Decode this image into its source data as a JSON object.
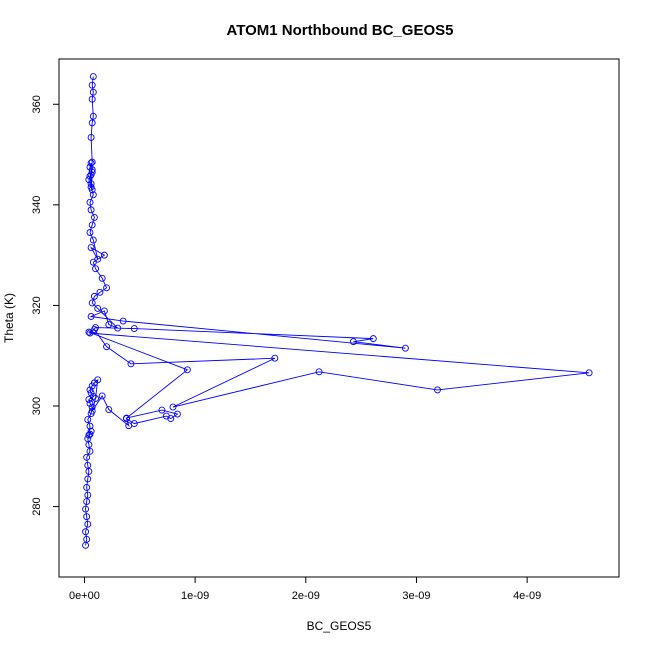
{
  "chart_data": {
    "type": "scatter",
    "title": "ATOM1 Northbound BC_GEOS5",
    "xlabel": "BC_GEOS5",
    "ylabel": "Theta (K)",
    "xlim": [
      -2.3e-10,
      4.83e-09
    ],
    "ylim": [
      266,
      369
    ],
    "x_ticks": [
      0,
      1e-09,
      2e-09,
      3e-09,
      4e-09
    ],
    "x_tick_labels": [
      "0e+00",
      "1e-09",
      "2e-09",
      "3e-09",
      "4e-09"
    ],
    "y_ticks": [
      280,
      300,
      320,
      340,
      360
    ],
    "y_tick_labels": [
      "280",
      "300",
      "320",
      "340",
      "360"
    ],
    "grid": false,
    "legend": "none",
    "point_color": "#0000ff",
    "marker": "open-circle",
    "connected": true,
    "series": [
      {
        "x": [
          1e-11,
          2e-11,
          1e-11,
          3e-11,
          2e-11,
          1e-11,
          2e-11,
          3e-11,
          2e-11,
          3e-11,
          4e-11,
          3e-11,
          2e-11,
          5e-11,
          4e-11,
          3e-11,
          5e-11,
          6e-11,
          4e-11,
          5e-11,
          3e-11,
          6e-11,
          7e-11,
          5e-11,
          4e-11,
          8e-11,
          6e-11,
          5e-11,
          7e-11,
          9e-11,
          1.2e-10,
          1e-10,
          7e-11,
          1.6e-10,
          2.2e-10,
          4e-10,
          3.8e-10,
          4.5e-10,
          7.4e-10,
          7.8e-10,
          8.4e-10,
          7e-10,
          3.8e-10,
          9.3e-10,
          4e-11,
          9e-11,
          2e-10,
          4.2e-10,
          1.72e-09,
          8e-10,
          2.12e-09,
          3.19e-09,
          4.56e-09,
          5e-11,
          1e-10,
          4.5e-10,
          2.61e-09,
          2.43e-09,
          2.9e-09,
          3.5e-10,
          6e-11,
          1.8e-10,
          2.2e-10,
          3e-10,
          1.2e-10,
          7e-11,
          9e-11,
          1.4e-10,
          2e-10,
          1.6e-10,
          1e-10,
          8e-11,
          1.8e-10,
          6e-11,
          1.2e-10,
          8e-11,
          5e-11,
          7e-11,
          9e-11,
          6e-11,
          5e-11,
          8e-11,
          6e-11,
          4e-11,
          7e-11,
          5e-11,
          6e-11,
          7e-11,
          5e-11,
          6e-11,
          7e-11,
          6e-11,
          7e-11,
          6e-11,
          7e-11,
          8e-11,
          7e-11,
          8e-11,
          7e-11,
          8e-11
        ],
        "y": [
          272.3,
          273.5,
          275.0,
          276.5,
          278.0,
          279.5,
          281.0,
          282.3,
          283.8,
          285.5,
          287.0,
          288.2,
          289.8,
          291.0,
          292.3,
          293.5,
          294.4,
          295.0,
          294.2,
          296.0,
          297.3,
          298.5,
          299.8,
          300.5,
          301.3,
          301.9,
          302.6,
          303.2,
          304.0,
          304.6,
          305.2,
          301.5,
          299.0,
          302.0,
          299.3,
          296.1,
          297.5,
          296.5,
          298.0,
          297.5,
          298.4,
          299.2,
          297.6,
          307.2,
          314.7,
          315.2,
          311.8,
          308.4,
          309.5,
          299.8,
          306.8,
          303.2,
          306.6,
          314.5,
          315.6,
          315.4,
          313.4,
          312.8,
          311.5,
          316.9,
          317.8,
          318.9,
          316.2,
          315.5,
          319.4,
          320.5,
          321.8,
          322.6,
          323.5,
          325.4,
          327.3,
          328.6,
          330.0,
          331.5,
          329.2,
          333.0,
          334.5,
          336.0,
          337.5,
          339.0,
          340.5,
          342.0,
          343.5,
          345.0,
          346.5,
          347.5,
          348.3,
          347.0,
          345.7,
          344.2,
          343.0,
          346.0,
          348.5,
          353.4,
          356.3,
          357.6,
          361.0,
          362.4,
          363.8,
          365.5
        ]
      }
    ]
  }
}
